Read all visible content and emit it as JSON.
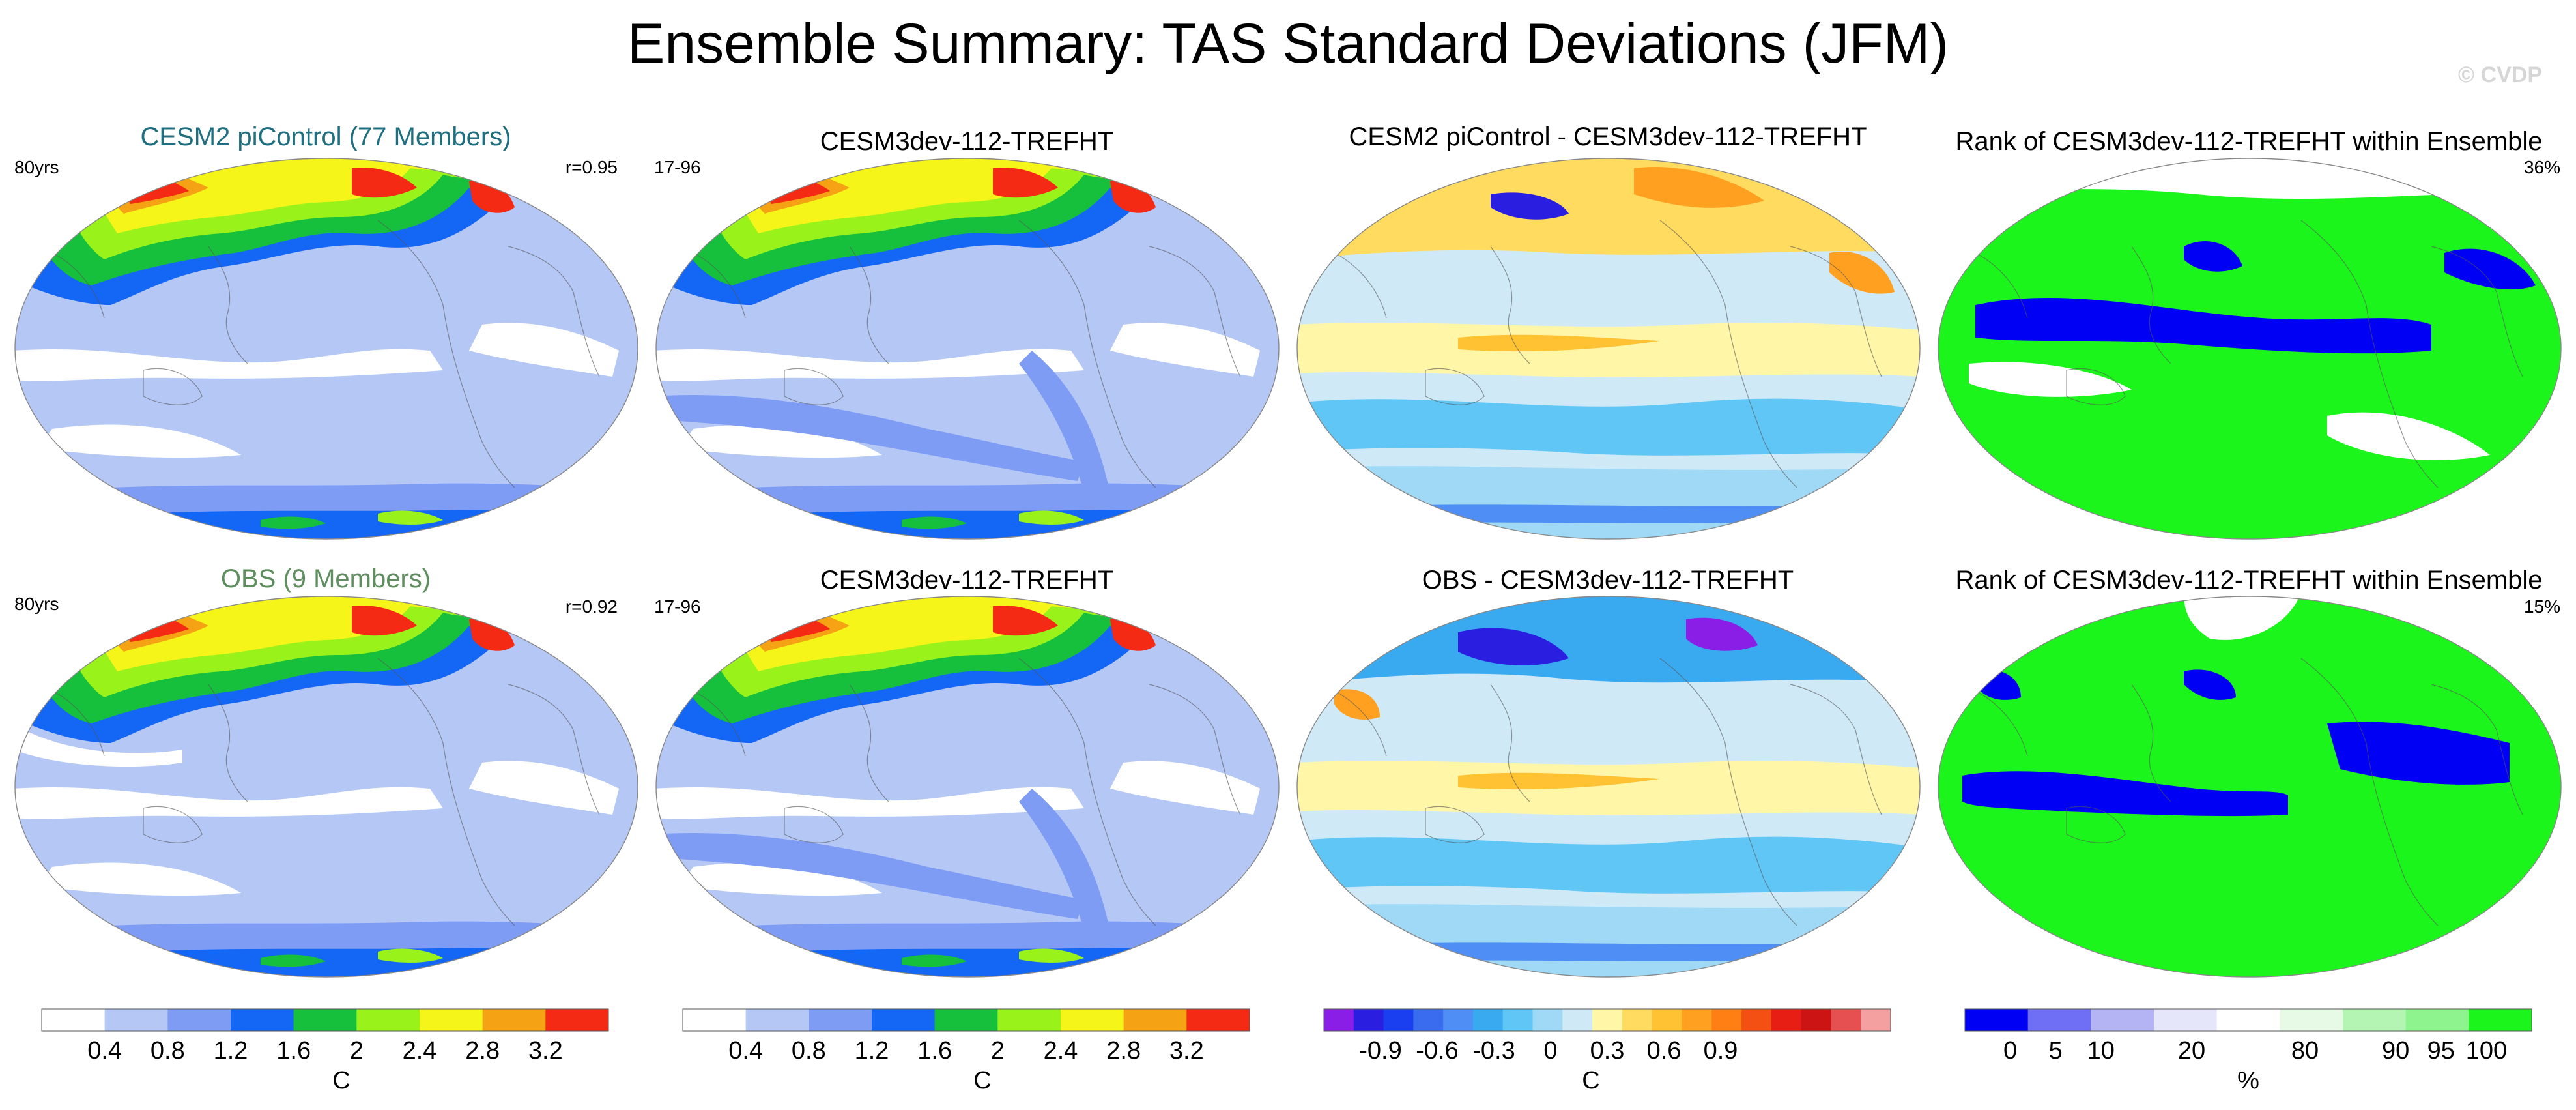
{
  "title": "Ensemble Summary: TAS Standard Deviations (JFM)",
  "copyright": "© CVDP",
  "panels": [
    {
      "title": "CESM2 piControl (77 Members)",
      "left_text": "80yrs",
      "right_text": "r=0.95",
      "title_color": "#1f6f80",
      "map_type": "std_ens"
    },
    {
      "title": "CESM3dev-112-TREFHT",
      "left_text": "17-96",
      "right_text": "",
      "title_color": "#000000",
      "map_type": "std_model"
    },
    {
      "title": "CESM2 piControl - CESM3dev-112-TREFHT",
      "left_text": "",
      "right_text": "",
      "title_color": "#000000",
      "map_type": "diff"
    },
    {
      "title": "Rank of CESM3dev-112-TREFHT within Ensemble",
      "left_text": "",
      "right_text": "36%",
      "title_color": "#000000",
      "map_type": "rank"
    },
    {
      "title": "OBS (9 Members)",
      "left_text": "80yrs",
      "right_text": "r=0.92",
      "title_color": "#5f8f5f",
      "map_type": "std_obs"
    },
    {
      "title": "CESM3dev-112-TREFHT",
      "left_text": "17-96",
      "right_text": "",
      "title_color": "#000000",
      "map_type": "std_model"
    },
    {
      "title": "OBS - CESM3dev-112-TREFHT",
      "left_text": "",
      "right_text": "",
      "title_color": "#000000",
      "map_type": "diff_obs"
    },
    {
      "title": "Rank of CESM3dev-112-TREFHT within Ensemble",
      "left_text": "",
      "right_text": "15%",
      "title_color": "#000000",
      "map_type": "rank_obs"
    }
  ],
  "colorbars": [
    {
      "unit": "C",
      "labels": [
        "0.4",
        "0.8",
        "1.2",
        "1.6",
        "2",
        "2.4",
        "2.8",
        "3.2"
      ],
      "colors": [
        "#ffffff",
        "#b4c7f5",
        "#7f9cf5",
        "#1466f5",
        "#16bf3c",
        "#99f21a",
        "#f5f51a",
        "#f5a214",
        "#f52a14"
      ]
    },
    {
      "unit": "C",
      "labels": [
        "0.4",
        "0.8",
        "1.2",
        "1.6",
        "2",
        "2.4",
        "2.8",
        "3.2"
      ],
      "colors": [
        "#ffffff",
        "#b4c7f5",
        "#7f9cf5",
        "#1466f5",
        "#16bf3c",
        "#99f21a",
        "#f5f51a",
        "#f5a214",
        "#f52a14"
      ]
    },
    {
      "unit": "C",
      "labels": [
        "-0.9",
        "-0.6",
        "-0.3",
        "0",
        "0.3",
        "0.6",
        "0.9"
      ],
      "colors": [
        "#8a1ee6",
        "#2a1ee0",
        "#1a3ff0",
        "#3a6cf0",
        "#4f8ef5",
        "#3aaaf0",
        "#5fc6f5",
        "#9fd9f5",
        "#cfe9f7",
        "#fff6a8",
        "#ffdc5f",
        "#ffc232",
        "#ffa020",
        "#ff7f14",
        "#f55014",
        "#e61e14",
        "#cc1414",
        "#e65050",
        "#f5a0a0"
      ]
    },
    {
      "unit": "%",
      "labels": [
        "0",
        "5",
        "10",
        "20",
        "80",
        "90",
        "95",
        "100"
      ],
      "colors": [
        "#0000f5",
        "#6f6ff5",
        "#b4b4f5",
        "#e6e6fa",
        "#ffffff",
        "#e6fae6",
        "#b4f5b4",
        "#8ef58e",
        "#1cf51c"
      ]
    }
  ],
  "colorbar_label_positions": [
    [
      0.0667,
      0.1778,
      0.2889,
      0.4,
      0.5111,
      0.6222,
      0.7333,
      0.8444
    ],
    [
      0.0667,
      0.1778,
      0.2889,
      0.4,
      0.5111,
      0.6222,
      0.7333,
      0.8444
    ],
    [
      0.1,
      0.2,
      0.3,
      0.4,
      0.5,
      0.6,
      0.7
    ],
    [
      0.08,
      0.16,
      0.24,
      0.4,
      0.6,
      0.76,
      0.84,
      0.92
    ]
  ]
}
